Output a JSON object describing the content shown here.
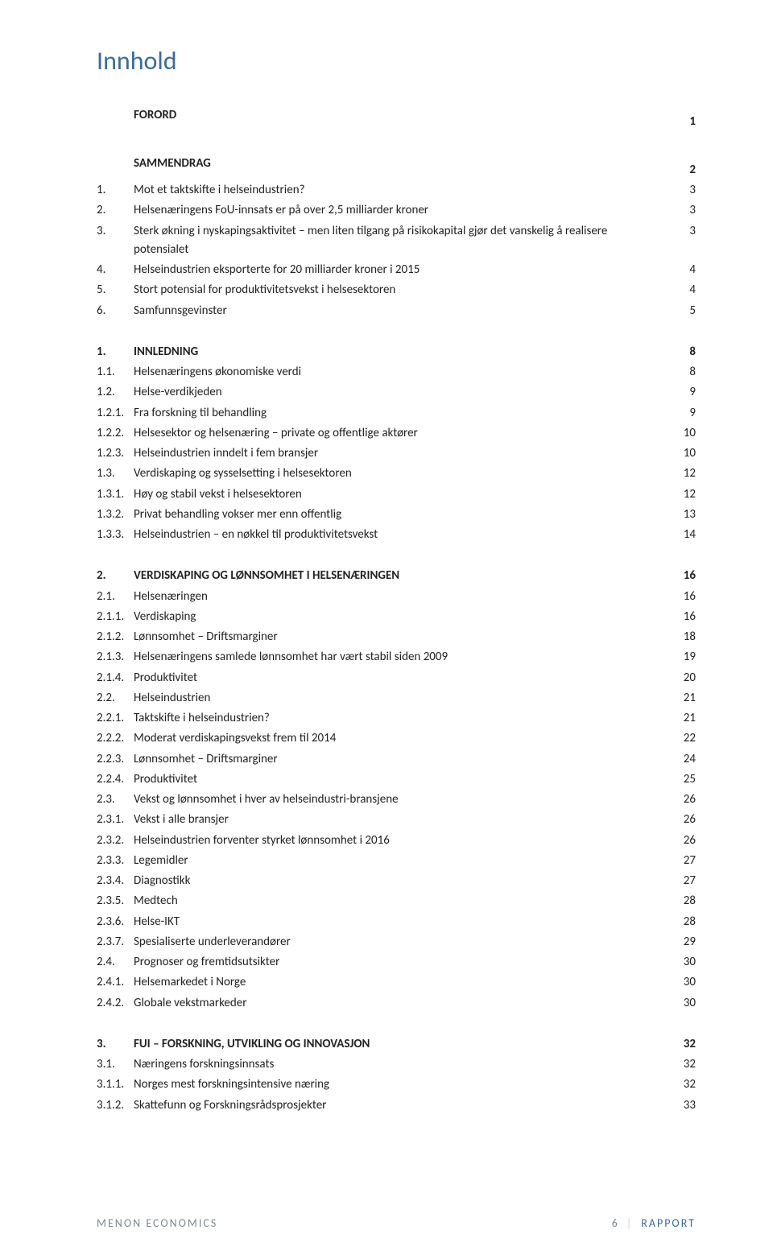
{
  "title": "Innhold",
  "footer": {
    "left": "MENON ECONOMICS",
    "pnum": "6",
    "label": "RAPPORT"
  },
  "toc": [
    {
      "kind": "head",
      "num": "",
      "label": "FORORD",
      "page": "1"
    },
    {
      "kind": "gap-lg"
    },
    {
      "kind": "head",
      "num": "",
      "label": "SAMMENDRAG",
      "page": "2"
    },
    {
      "kind": "reg",
      "num": "1.",
      "label": "Mot et taktskifte i helseindustrien?",
      "page": "3"
    },
    {
      "kind": "reg",
      "num": "2.",
      "label": "Helsenæringens FoU-innsats er på over 2,5 milliarder kroner",
      "page": "3"
    },
    {
      "kind": "reg",
      "num": "3.",
      "label": "Sterk økning i nyskapingsaktivitet – men liten tilgang på risikokapital gjør det vanskelig å realisere potensialet",
      "page": "3"
    },
    {
      "kind": "reg",
      "num": "4.",
      "label": "Helseindustrien eksporterte for 20 milliarder kroner i 2015",
      "page": "4"
    },
    {
      "kind": "reg",
      "num": "5.",
      "label": "Stort potensial for produktivitetsvekst i helsesektoren",
      "page": "4"
    },
    {
      "kind": "reg",
      "num": "6.",
      "label": "Samfunnsgevinster",
      "page": "5"
    },
    {
      "kind": "gap-lg"
    },
    {
      "kind": "head",
      "num": "1.",
      "label": "INNLEDNING",
      "page": "8"
    },
    {
      "kind": "reg",
      "num": "1.1.",
      "label": "Helsenæringens økonomiske verdi",
      "page": "8"
    },
    {
      "kind": "reg",
      "num": "1.2.",
      "label": "Helse-verdikjeden",
      "page": "9"
    },
    {
      "kind": "reg",
      "num": "1.2.1.",
      "label": "Fra forskning til behandling",
      "page": "9"
    },
    {
      "kind": "reg",
      "num": "1.2.2.",
      "label": "Helsesektor og helsenæring – private og offentlige aktører",
      "page": "10"
    },
    {
      "kind": "reg",
      "num": "1.2.3.",
      "label": "Helseindustrien inndelt i fem bransjer",
      "page": "10"
    },
    {
      "kind": "reg",
      "num": "1.3.",
      "label": "Verdiskaping og sysselsetting i helsesektoren",
      "page": "12"
    },
    {
      "kind": "reg",
      "num": "1.3.1.",
      "label": "Høy og stabil vekst i helsesektoren",
      "page": "12"
    },
    {
      "kind": "reg",
      "num": "1.3.2.",
      "label": "Privat behandling vokser mer enn offentlig",
      "page": "13"
    },
    {
      "kind": "reg",
      "num": "1.3.3.",
      "label": "Helseindustrien – en nøkkel til produktivitetsvekst",
      "page": "14"
    },
    {
      "kind": "gap-lg"
    },
    {
      "kind": "head",
      "num": "2.",
      "label": "VERDISKAPING OG LØNNSOMHET I HELSENÆRINGEN",
      "page": "16"
    },
    {
      "kind": "reg",
      "num": "2.1.",
      "label": "Helsenæringen",
      "page": "16"
    },
    {
      "kind": "reg",
      "num": "2.1.1.",
      "label": "Verdiskaping",
      "page": "16"
    },
    {
      "kind": "reg",
      "num": "2.1.2.",
      "label": "Lønnsomhet – Driftsmarginer",
      "page": "18"
    },
    {
      "kind": "reg",
      "num": "2.1.3.",
      "label": "Helsenæringens samlede lønnsomhet har vært stabil siden 2009",
      "page": "19"
    },
    {
      "kind": "reg",
      "num": "2.1.4.",
      "label": "Produktivitet",
      "page": "20"
    },
    {
      "kind": "reg",
      "num": "2.2.",
      "label": "Helseindustrien",
      "page": "21"
    },
    {
      "kind": "reg",
      "num": "2.2.1.",
      "label": "Taktskifte i helseindustrien?",
      "page": "21"
    },
    {
      "kind": "reg",
      "num": "2.2.2.",
      "label": "Moderat verdiskapingsvekst frem til 2014",
      "page": "22"
    },
    {
      "kind": "reg",
      "num": "2.2.3.",
      "label": "Lønnsomhet – Driftsmarginer",
      "page": "24"
    },
    {
      "kind": "reg",
      "num": "2.2.4.",
      "label": "Produktivitet",
      "page": "25"
    },
    {
      "kind": "reg",
      "num": "2.3.",
      "label": "Vekst og lønnsomhet i hver av helseindustri-bransjene",
      "page": "26"
    },
    {
      "kind": "reg",
      "num": "2.3.1.",
      "label": "Vekst i alle bransjer",
      "page": "26"
    },
    {
      "kind": "reg",
      "num": "2.3.2.",
      "label": "Helseindustrien forventer styrket lønnsomhet i 2016",
      "page": "26"
    },
    {
      "kind": "reg",
      "num": "2.3.3.",
      "label": "Legemidler",
      "page": "27"
    },
    {
      "kind": "reg",
      "num": "2.3.4.",
      "label": "Diagnostikk",
      "page": "27"
    },
    {
      "kind": "reg",
      "num": "2.3.5.",
      "label": "Medtech",
      "page": "28"
    },
    {
      "kind": "reg",
      "num": "2.3.6.",
      "label": "Helse-IKT",
      "page": "28"
    },
    {
      "kind": "reg",
      "num": "2.3.7.",
      "label": "Spesialiserte  underleverandører",
      "page": "29"
    },
    {
      "kind": "reg",
      "num": "2.4.",
      "label": "Prognoser og fremtidsutsikter",
      "page": "30"
    },
    {
      "kind": "reg",
      "num": "2.4.1.",
      "label": "Helsemarkedet i Norge",
      "page": "30"
    },
    {
      "kind": "reg",
      "num": "2.4.2.",
      "label": "Globale vekstmarkeder",
      "page": "30"
    },
    {
      "kind": "gap-lg"
    },
    {
      "kind": "head",
      "num": "3.",
      "label": "FUI – FORSKNING, UTVIKLING OG INNOVASJON",
      "page": "32"
    },
    {
      "kind": "reg",
      "num": "3.1.",
      "label": "Næringens forskningsinnsats",
      "page": "32"
    },
    {
      "kind": "reg",
      "num": "3.1.1.",
      "label": "Norges mest forskningsintensive næring",
      "page": "32"
    },
    {
      "kind": "reg",
      "num": "3.1.2.",
      "label": "Skattefunn og Forskningsrådsprosjekter",
      "page": "33"
    }
  ]
}
